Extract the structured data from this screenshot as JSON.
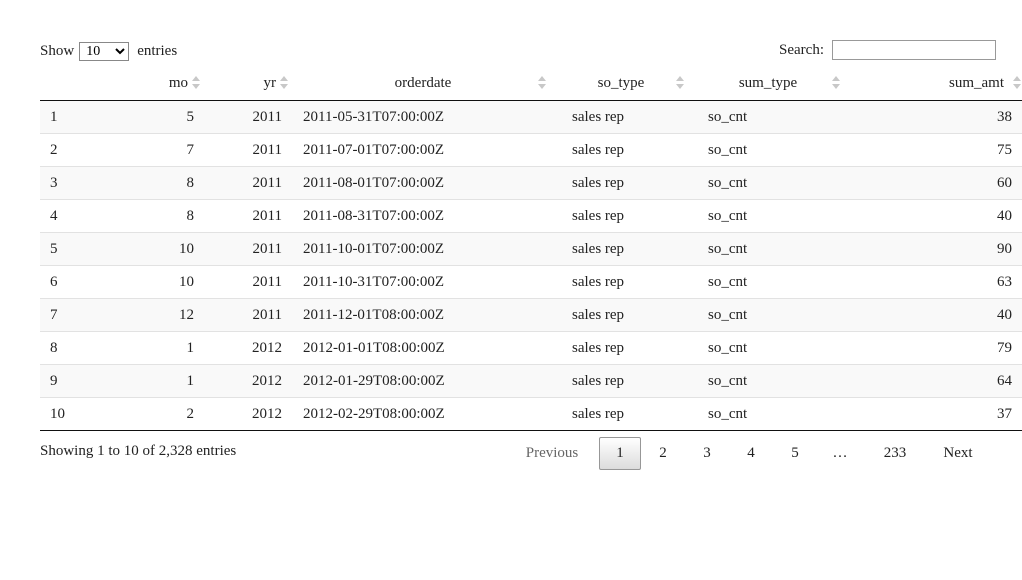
{
  "length_control": {
    "show_label": "Show",
    "selected": "10",
    "options": [
      "10"
    ],
    "entries_label": "entries"
  },
  "search": {
    "label": "Search:",
    "value": ""
  },
  "table": {
    "columns": [
      "",
      "mo",
      "yr",
      "orderdate",
      "so_type",
      "sum_type",
      "sum_amt"
    ],
    "rows": [
      [
        "1",
        "5",
        "2011",
        "2011-05-31T07:00:00Z",
        "sales rep",
        "so_cnt",
        "38"
      ],
      [
        "2",
        "7",
        "2011",
        "2011-07-01T07:00:00Z",
        "sales rep",
        "so_cnt",
        "75"
      ],
      [
        "3",
        "8",
        "2011",
        "2011-08-01T07:00:00Z",
        "sales rep",
        "so_cnt",
        "60"
      ],
      [
        "4",
        "8",
        "2011",
        "2011-08-31T07:00:00Z",
        "sales rep",
        "so_cnt",
        "40"
      ],
      [
        "5",
        "10",
        "2011",
        "2011-10-01T07:00:00Z",
        "sales rep",
        "so_cnt",
        "90"
      ],
      [
        "6",
        "10",
        "2011",
        "2011-10-31T07:00:00Z",
        "sales rep",
        "so_cnt",
        "63"
      ],
      [
        "7",
        "12",
        "2011",
        "2011-12-01T08:00:00Z",
        "sales rep",
        "so_cnt",
        "40"
      ],
      [
        "8",
        "1",
        "2012",
        "2012-01-01T08:00:00Z",
        "sales rep",
        "so_cnt",
        "79"
      ],
      [
        "9",
        "1",
        "2012",
        "2012-01-29T08:00:00Z",
        "sales rep",
        "so_cnt",
        "64"
      ],
      [
        "10",
        "2",
        "2012",
        "2012-02-29T08:00:00Z",
        "sales rep",
        "so_cnt",
        "37"
      ]
    ]
  },
  "info_text": "Showing 1 to 10 of 2,328 entries",
  "pagination": {
    "previous": "Previous",
    "pages": [
      "1",
      "2",
      "3",
      "4",
      "5"
    ],
    "current": "1",
    "ellipsis": "…",
    "last": "233",
    "next": "Next"
  }
}
